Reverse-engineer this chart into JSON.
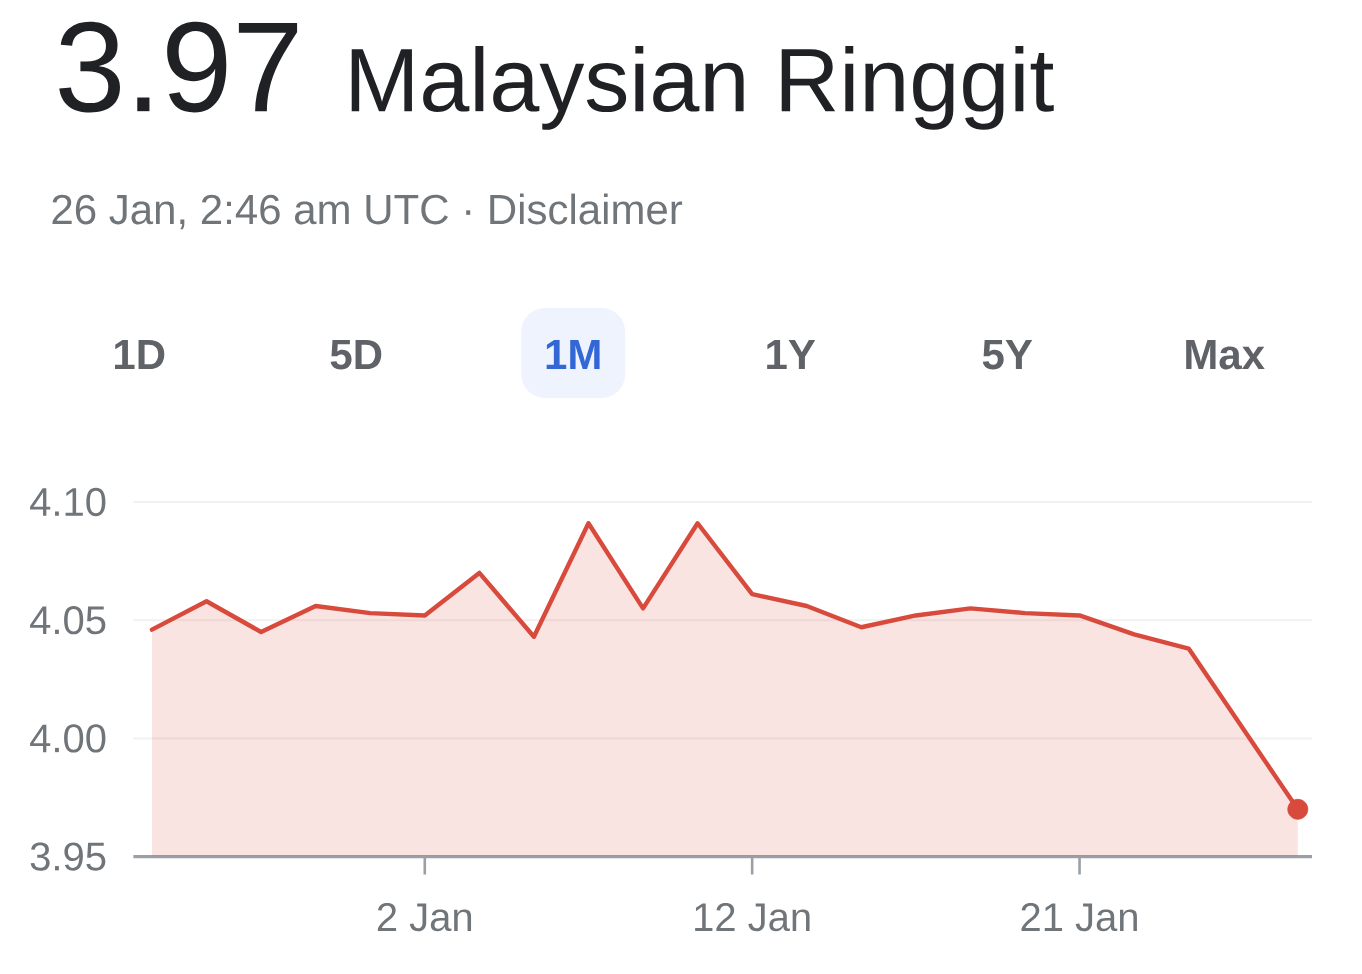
{
  "chart_data": {
    "type": "area",
    "title": "3.97",
    "subtitle": "Malaysian Ringgit",
    "annotations": [
      "26 Jan, 2:46 am UTC · Disclaimer",
      "1D",
      "5D",
      "1M",
      "1Y",
      "5Y",
      "Max"
    ],
    "categories": [
      null,
      null,
      null,
      null,
      null,
      "2 Jan",
      null,
      null,
      null,
      null,
      null,
      "12 Jan",
      null,
      null,
      null,
      null,
      null,
      "21 Jan",
      null,
      null,
      null,
      null
    ],
    "series": [
      {
        "color": "#d84a3c",
        "values": [
          4.046,
          4.058,
          4.045,
          4.056,
          4.053,
          4.052,
          4.07,
          4.043,
          4.091,
          4.055,
          4.091,
          4.061,
          4.056,
          4.047,
          4.052,
          4.055,
          4.053,
          4.052,
          4.044,
          4.038,
          null,
          3.97
        ]
      },
      {
        "type": "scatter",
        "color": "#d84a3c",
        "values": [
          null,
          null,
          null,
          null,
          null,
          null,
          null,
          null,
          null,
          null,
          null,
          null,
          null,
          null,
          null,
          null,
          null,
          null,
          null,
          null,
          null,
          3.97
        ]
      }
    ],
    "ylim": [
      3.95,
      4.1
    ],
    "yticks": [
      3.95,
      {
        "value": 4.0,
        "label": "4.00"
      },
      4.05,
      {
        "value": 4.1,
        "label": "4.10"
      }
    ],
    "grid": "y"
  }
}
